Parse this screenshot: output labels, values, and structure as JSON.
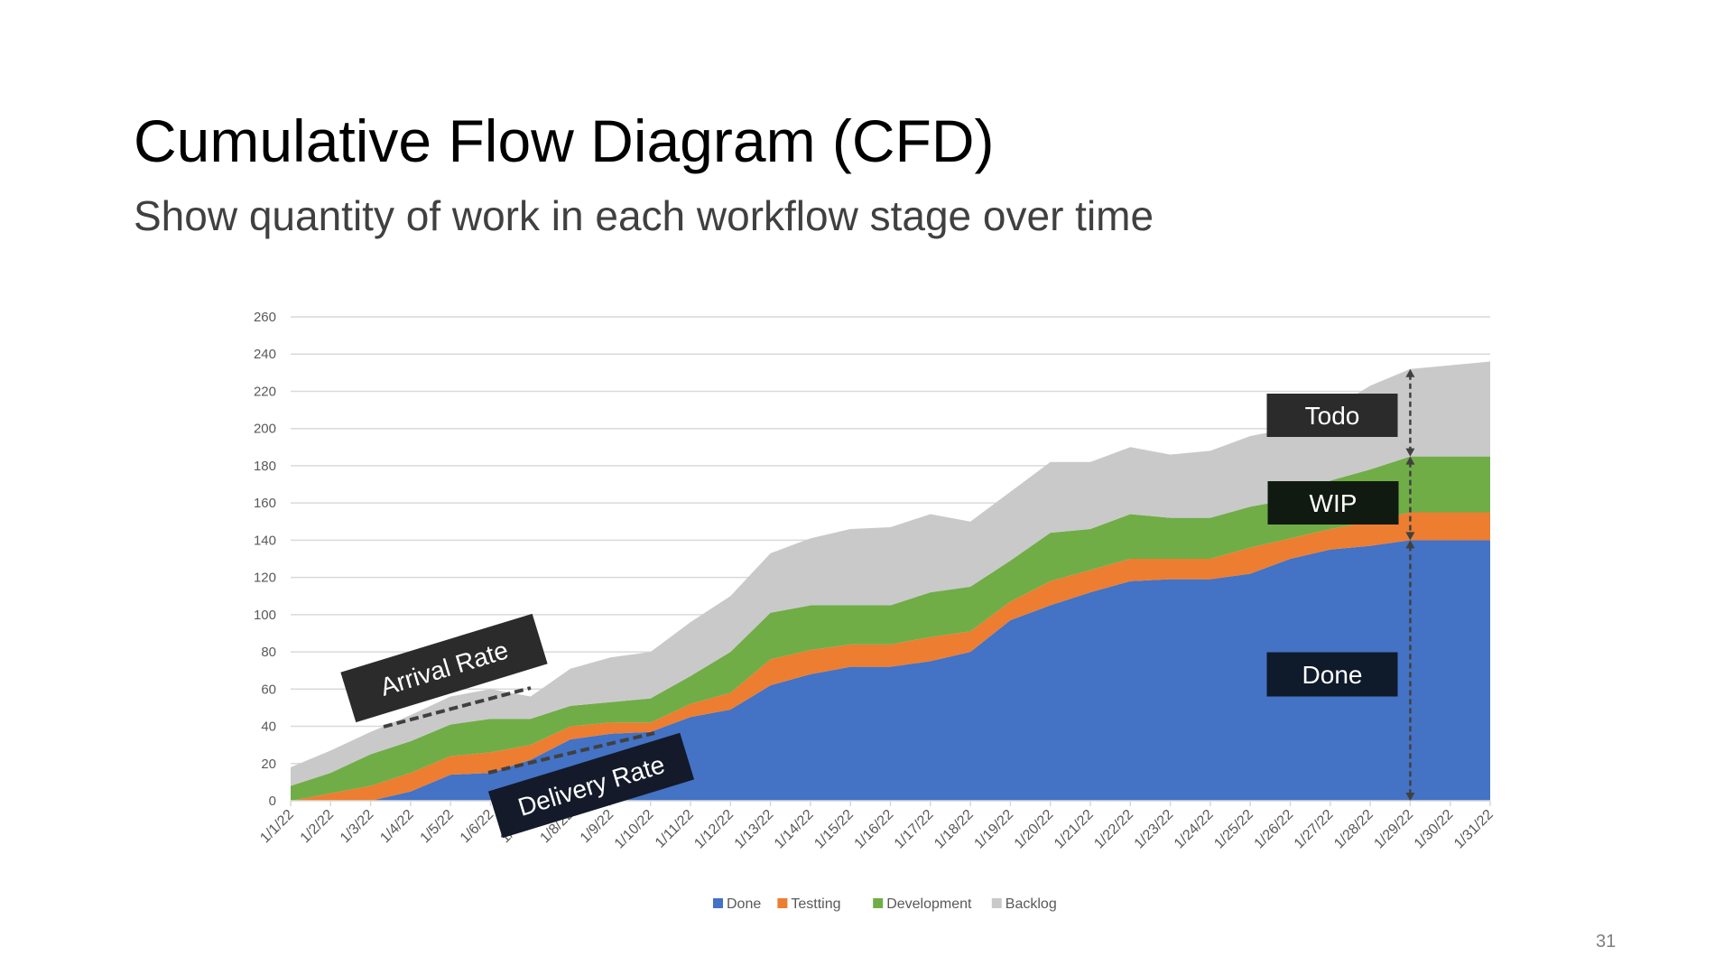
{
  "slide": {
    "title": "Cumulative Flow Diagram (CFD)",
    "subtitle": "Show quantity of work in each workflow stage over time",
    "page_number": "31"
  },
  "annotations": {
    "arrival_rate": "Arrival Rate",
    "delivery_rate": "Delivery Rate",
    "todo": "Todo",
    "wip": "WIP",
    "done": "Done"
  },
  "chart_data": {
    "type": "area",
    "stacked": true,
    "title": "",
    "xlabel": "",
    "ylabel": "",
    "ylim": [
      0,
      260
    ],
    "yticks": [
      0,
      20,
      40,
      60,
      80,
      100,
      120,
      140,
      160,
      180,
      200,
      220,
      240,
      260
    ],
    "grid": true,
    "legend_position": "bottom",
    "categories": [
      "1/1/22",
      "1/2/22",
      "1/3/22",
      "1/4/22",
      "1/5/22",
      "1/6/22",
      "1/7/22",
      "1/8/22",
      "1/9/22",
      "1/10/22",
      "1/11/22",
      "1/12/22",
      "1/13/22",
      "1/14/22",
      "1/15/22",
      "1/16/22",
      "1/17/22",
      "1/18/22",
      "1/19/22",
      "1/20/22",
      "1/21/22",
      "1/22/22",
      "1/23/22",
      "1/24/22",
      "1/25/22",
      "1/26/22",
      "1/27/22",
      "1/28/22",
      "1/29/22",
      "1/30/22",
      "1/31/22"
    ],
    "series": [
      {
        "name": "Done",
        "color": "#4472c4",
        "values": [
          0,
          0,
          0,
          5,
          14,
          15,
          22,
          33,
          36,
          37,
          45,
          49,
          62,
          68,
          72,
          72,
          75,
          80,
          97,
          105,
          112,
          118,
          119,
          119,
          122,
          130,
          135,
          137,
          140,
          140,
          140
        ]
      },
      {
        "name": "Testting",
        "color": "#ed7d31",
        "values": [
          0,
          4,
          8,
          10,
          10,
          11,
          8,
          7,
          6,
          5,
          7,
          9,
          14,
          13,
          12,
          12,
          13,
          11,
          10,
          13,
          12,
          12,
          11,
          11,
          14,
          11,
          11,
          13,
          15,
          15,
          15
        ]
      },
      {
        "name": "Development",
        "color": "#70ad47",
        "values": [
          8,
          11,
          17,
          17,
          17,
          18,
          14,
          11,
          11,
          13,
          15,
          22,
          25,
          24,
          21,
          21,
          24,
          24,
          22,
          26,
          22,
          24,
          22,
          22,
          22,
          21,
          26,
          28,
          30,
          30,
          30
        ]
      },
      {
        "name": "Backlog",
        "color": "#c9c9c9",
        "values": [
          10,
          12,
          12,
          14,
          15,
          16,
          12,
          20,
          24,
          25,
          29,
          30,
          32,
          36,
          41,
          42,
          42,
          35,
          37,
          38,
          36,
          36,
          34,
          36,
          38,
          38,
          38,
          45,
          47,
          49,
          51
        ]
      }
    ]
  }
}
